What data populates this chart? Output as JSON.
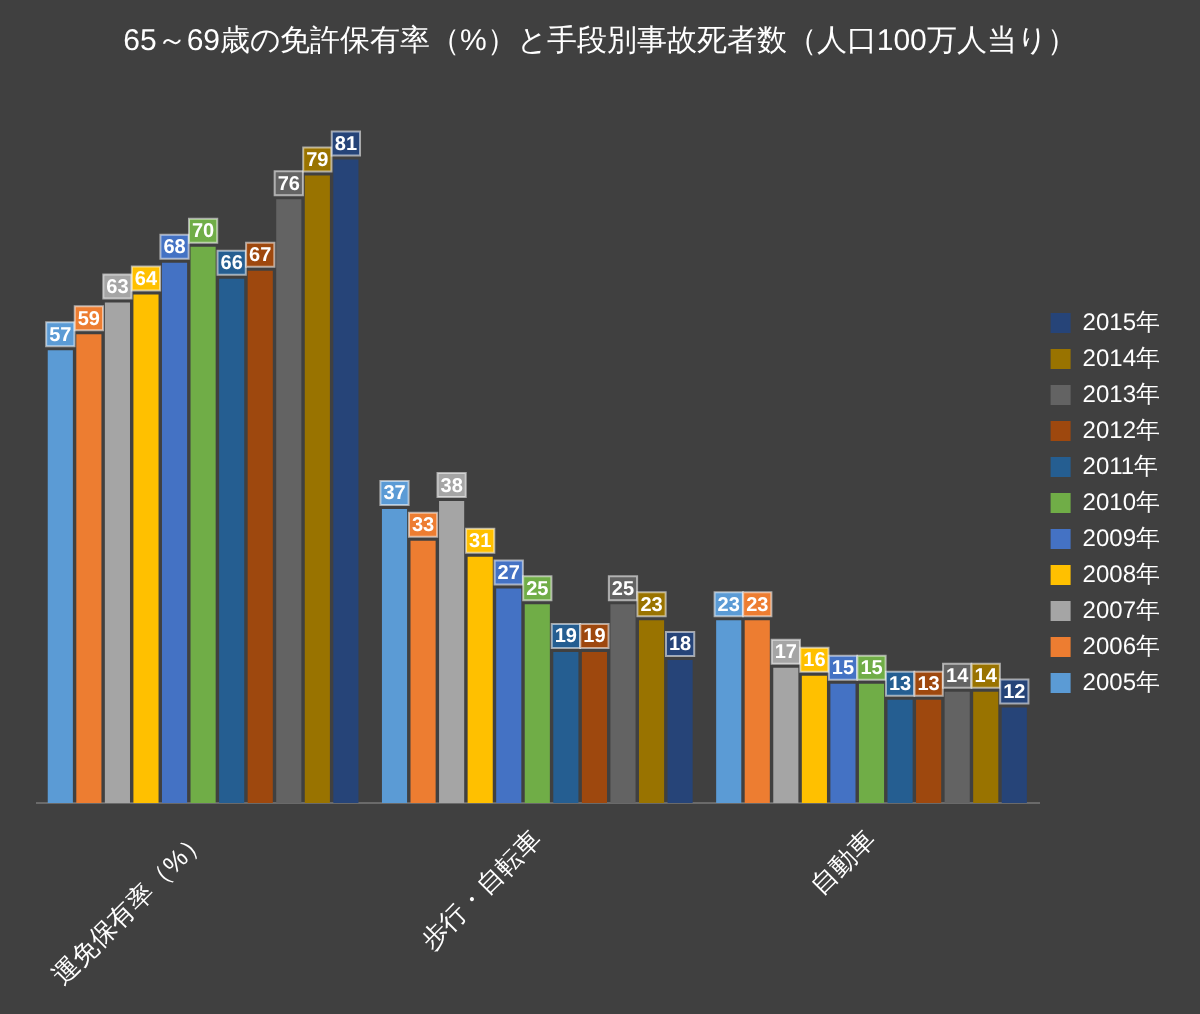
{
  "chart_data": {
    "type": "bar",
    "title": "65～69歳の免許保有率（%）と手段別事故死者数（人口100万人当り）",
    "categories": [
      "運免保有率（%）",
      "歩行・自転車",
      "自動車"
    ],
    "series": [
      {
        "name": "2005年",
        "color": "#5b9bd5",
        "values": [
          57,
          37,
          23
        ]
      },
      {
        "name": "2006年",
        "color": "#ed7d31",
        "values": [
          59,
          33,
          23
        ]
      },
      {
        "name": "2007年",
        "color": "#a5a5a5",
        "values": [
          63,
          38,
          17
        ]
      },
      {
        "name": "2008年",
        "color": "#ffc000",
        "values": [
          64,
          31,
          16
        ]
      },
      {
        "name": "2009年",
        "color": "#4472c4",
        "values": [
          68,
          27,
          15
        ]
      },
      {
        "name": "2010年",
        "color": "#70ad47",
        "values": [
          70,
          25,
          15
        ]
      },
      {
        "name": "2011年",
        "color": "#255e91",
        "values": [
          66,
          19,
          13
        ]
      },
      {
        "name": "2012年",
        "color": "#9e480e",
        "values": [
          67,
          19,
          13
        ]
      },
      {
        "name": "2013年",
        "color": "#636363",
        "values": [
          76,
          25,
          14
        ]
      },
      {
        "name": "2014年",
        "color": "#997300",
        "values": [
          79,
          23,
          14
        ]
      },
      {
        "name": "2015年",
        "color": "#264478",
        "values": [
          81,
          18,
          12
        ]
      }
    ],
    "data_labels": true,
    "legend": "right"
  }
}
